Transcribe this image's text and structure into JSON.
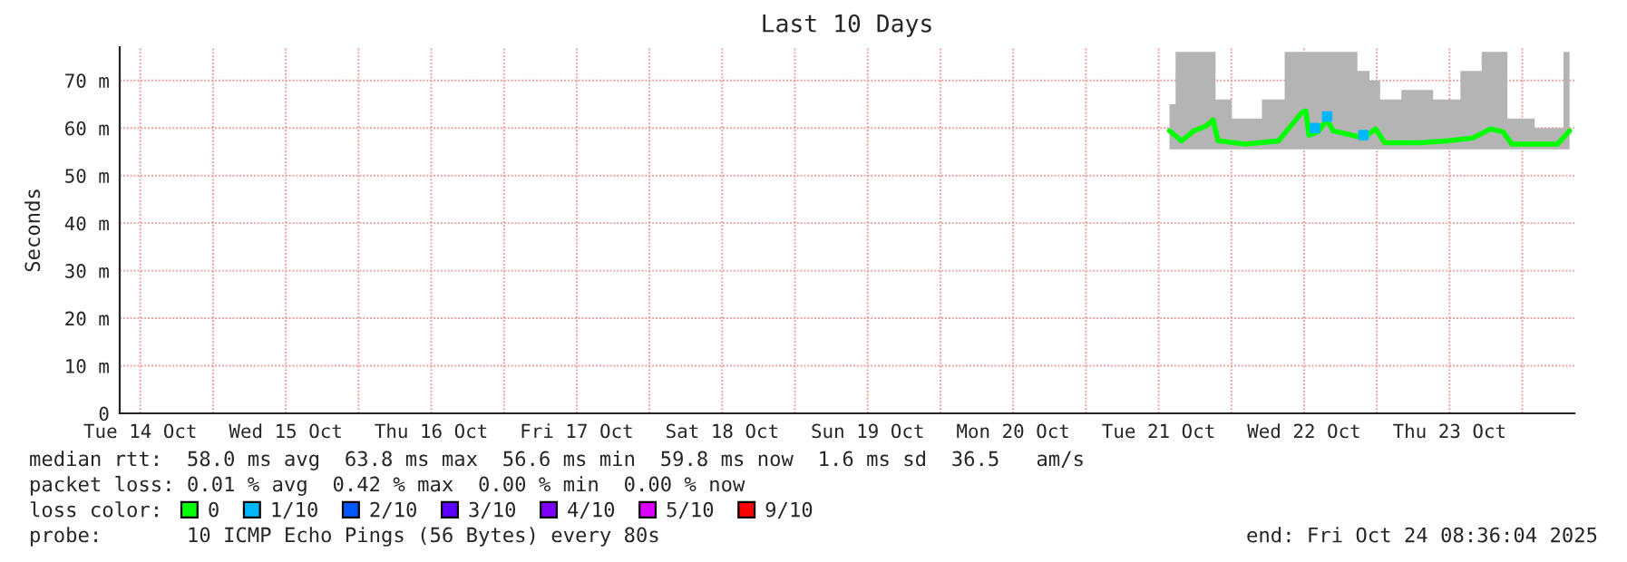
{
  "chart_data": {
    "type": "line",
    "title": "Last 10 Days",
    "ylabel": "Seconds",
    "x": [
      "2025-10-21T13:48",
      "2025-10-21T15:48",
      "2025-10-21T17:48",
      "2025-10-21T19:48",
      "2025-10-21T21:00",
      "2025-10-21T21:48",
      "2025-10-22T02:18",
      "2025-10-22T07:48",
      "2025-10-22T09:48",
      "2025-10-22T11:36",
      "2025-10-22T12:18",
      "2025-10-22T12:48",
      "2025-10-22T14:18",
      "2025-10-22T15:48",
      "2025-10-22T16:48",
      "2025-10-22T19:48",
      "2025-10-22T21:48",
      "2025-10-22T23:48",
      "2025-10-23T01:18",
      "2025-10-23T06:48",
      "2025-10-23T11:48",
      "2025-10-23T15:48",
      "2025-10-23T18:48",
      "2025-10-23T20:48",
      "2025-10-23T22:18",
      "2025-10-24T05:48",
      "2025-10-24T07:48"
    ],
    "series": [
      {
        "name": "0",
        "color": "#00ff00",
        "values": [
          59.4,
          57.3,
          59.4,
          60.4,
          61.7,
          57.3,
          56.6,
          57.3,
          60.4,
          63.2,
          63.6,
          58.5,
          59.2,
          61.7,
          59.4,
          58.5,
          57.9,
          59.8,
          56.9,
          56.9,
          57.3,
          57.9,
          59.8,
          59.2,
          56.6,
          56.6,
          59.4
        ],
        "lower": [
          55.5,
          55.5,
          55.5,
          55.5,
          55.5,
          55.5,
          55.5,
          55.5,
          55.5,
          55.5,
          55.5,
          55.5,
          55.5,
          55.5,
          55.5,
          55.5,
          55.5,
          55.5,
          55.5,
          55.5,
          55.5,
          55.5,
          55.5,
          55.5,
          55.5,
          55.5,
          55.5
        ],
        "upper": [
          65,
          76,
          76,
          76,
          76,
          66,
          62,
          66,
          76,
          76,
          76,
          76,
          76,
          76,
          76,
          76,
          72,
          70,
          66,
          68,
          66,
          72,
          76,
          76,
          62,
          60,
          76
        ]
      },
      {
        "name": "1/10",
        "type": "scatter",
        "color": "#00b8ff",
        "x": [
          "2025-10-22T15:48",
          "2025-10-22T13:48",
          "2025-10-22T21:48"
        ],
        "values": [
          62.4,
          60.0,
          58.5
        ],
        "marker": "square"
      },
      {
        "name": "2/10",
        "type": "scatter",
        "color": "#0059ff",
        "values": [
          null,
          null,
          null,
          null,
          null,
          null,
          null,
          null,
          null,
          null,
          null,
          null,
          null,
          null,
          null,
          null,
          null,
          null,
          null,
          null,
          null,
          null,
          null,
          null,
          null,
          null,
          null
        ]
      },
      {
        "name": "3/10",
        "type": "scatter",
        "color": "#5e00ff",
        "values": [
          null,
          null,
          null,
          null,
          null,
          null,
          null,
          null,
          null,
          null,
          null,
          null,
          null,
          null,
          null,
          null,
          null,
          null,
          null,
          null,
          null,
          null,
          null,
          null,
          null,
          null,
          null
        ]
      },
      {
        "name": "4/10",
        "type": "scatter",
        "color": "#7e00ff",
        "values": [
          null,
          null,
          null,
          null,
          null,
          null,
          null,
          null,
          null,
          null,
          null,
          null,
          null,
          null,
          null,
          null,
          null,
          null,
          null,
          null,
          null,
          null,
          null,
          null,
          null,
          null,
          null
        ]
      },
      {
        "name": "5/10",
        "type": "scatter",
        "color": "#dd00ff",
        "values": [
          null,
          null,
          null,
          null,
          null,
          null,
          null,
          null,
          null,
          null,
          null,
          null,
          null,
          null,
          null,
          null,
          null,
          null,
          null,
          null,
          null,
          null,
          null,
          null,
          null,
          null,
          null
        ]
      },
      {
        "name": "9/10",
        "type": "scatter",
        "color": "#ff0000",
        "values": [
          null,
          null,
          null,
          null,
          null,
          null,
          null,
          null,
          null,
          null,
          null,
          null,
          null,
          null,
          null,
          null,
          null,
          null,
          null,
          null,
          null,
          null,
          null,
          null,
          null,
          null,
          null
        ]
      }
    ],
    "xlim": [
      "2025-10-14T08:36",
      "2025-10-24T08:36"
    ],
    "xticks": [
      {
        "value": "2025-10-14T12:00",
        "label": "Tue 14 Oct"
      },
      {
        "value": "2025-10-15T00:00",
        "label": null
      },
      {
        "value": "2025-10-15T12:00",
        "label": "Wed 15 Oct"
      },
      {
        "value": "2025-10-16T00:00",
        "label": null
      },
      {
        "value": "2025-10-16T12:00",
        "label": "Thu 16 Oct"
      },
      {
        "value": "2025-10-17T00:00",
        "label": null
      },
      {
        "value": "2025-10-17T12:00",
        "label": "Fri 17 Oct"
      },
      {
        "value": "2025-10-18T00:00",
        "label": null
      },
      {
        "value": "2025-10-18T12:00",
        "label": "Sat 18 Oct"
      },
      {
        "value": "2025-10-19T00:00",
        "label": null
      },
      {
        "value": "2025-10-19T12:00",
        "label": "Sun 19 Oct"
      },
      {
        "value": "2025-10-20T00:00",
        "label": null
      },
      {
        "value": "2025-10-20T12:00",
        "label": "Mon 20 Oct"
      },
      {
        "value": "2025-10-21T00:00",
        "label": null
      },
      {
        "value": "2025-10-21T12:00",
        "label": "Tue 21 Oct"
      },
      {
        "value": "2025-10-22T00:00",
        "label": null
      },
      {
        "value": "2025-10-22T12:00",
        "label": "Wed 22 Oct"
      },
      {
        "value": "2025-10-23T00:00",
        "label": null
      },
      {
        "value": "2025-10-23T12:00",
        "label": "Thu 23 Oct"
      },
      {
        "value": "2025-10-24T00:00",
        "label": null
      }
    ],
    "ylim": [
      0,
      77
    ],
    "yticks": [
      0,
      {
        "value": 10,
        "label": "10 m"
      },
      {
        "value": 20,
        "label": "20 m"
      },
      {
        "value": 30,
        "label": "30 m"
      },
      {
        "value": 40,
        "label": "40 m"
      },
      {
        "value": 50,
        "label": "50 m"
      },
      {
        "value": 60,
        "label": "60 m"
      },
      {
        "value": 70,
        "label": "70 m"
      }
    ],
    "grid": true,
    "legend": "bottom left",
    "legend_title": "loss color:",
    "line_style": "solid",
    "marker": "none",
    "annotations": [
      "median rtt:  58.0 ms avg  63.8 ms max  56.6 ms min  59.8 ms now  1.6 ms sd  36.5   am/s",
      "packet loss: 0.01 % avg  0.42 % max  0.00 % min  0.00 % now",
      "probe:       10 ICMP Echo Pings (56 Bytes) every 80s",
      "end: Fri Oct 24 08:36:04 2025"
    ]
  }
}
